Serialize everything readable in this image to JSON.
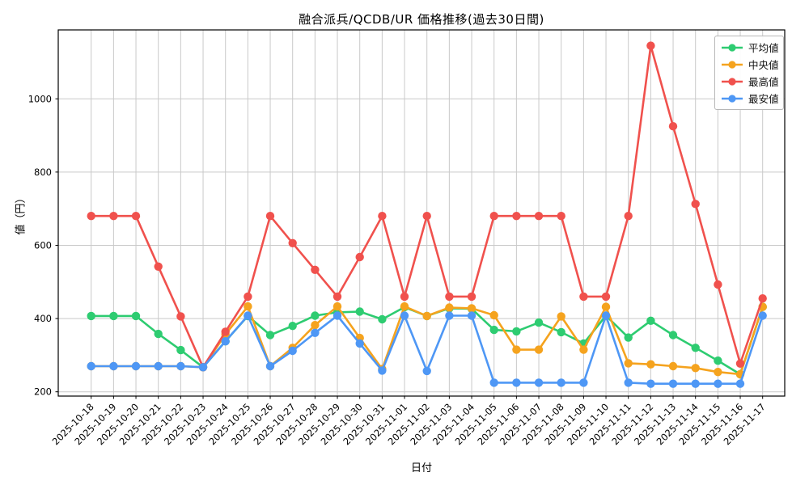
{
  "chart_data": {
    "type": "line",
    "title": "融合派兵/QCDB/UR 価格推移(過去30日間)",
    "xlabel": "日付",
    "ylabel": "値（円）",
    "grid": true,
    "legend_position": "top-right",
    "ylim": [
      190,
      1190
    ],
    "yticks": [
      200,
      400,
      600,
      800,
      1000
    ],
    "x": [
      "2025-10-18",
      "2025-10-19",
      "2025-10-20",
      "2025-10-21",
      "2025-10-22",
      "2025-10-23",
      "2025-10-24",
      "2025-10-25",
      "2025-10-26",
      "2025-10-27",
      "2025-10-28",
      "2025-10-29",
      "2025-10-30",
      "2025-10-31",
      "2025-11-01",
      "2025-11-02",
      "2025-11-03",
      "2025-11-04",
      "2025-11-05",
      "2025-11-06",
      "2025-11-07",
      "2025-11-08",
      "2025-11-09",
      "2025-11-10",
      "2025-11-11",
      "2025-11-12",
      "2025-11-13",
      "2025-11-14",
      "2025-11-15",
      "2025-11-16",
      "2025-11-17"
    ],
    "series": [
      {
        "name": "平均値",
        "color": "#2ecc71",
        "values": [
          407,
          407,
          407,
          358,
          314,
          267,
          338,
          407,
          355,
          380,
          408,
          417,
          419,
          398,
          431,
          407,
          428,
          427,
          369,
          365,
          389,
          363,
          332,
          408,
          348,
          394,
          355,
          320,
          285,
          248,
          432
        ]
      },
      {
        "name": "中央値",
        "color": "#f5a31e",
        "values": [
          270,
          270,
          270,
          270,
          270,
          267,
          357,
          433,
          270,
          320,
          382,
          433,
          347,
          262,
          433,
          407,
          430,
          428,
          409,
          315,
          315,
          406,
          315,
          432,
          278,
          275,
          270,
          265,
          254,
          248,
          432
        ]
      },
      {
        "name": "最高値",
        "color": "#f0514d",
        "values": [
          680,
          680,
          680,
          542,
          406,
          267,
          364,
          460,
          680,
          606,
          533,
          460,
          568,
          680,
          460,
          680,
          460,
          460,
          680,
          680,
          680,
          680,
          460,
          460,
          680,
          1145,
          925,
          713,
          493,
          277,
          455
        ]
      },
      {
        "name": "最安値",
        "color": "#4e97f5",
        "values": [
          270,
          270,
          270,
          270,
          270,
          267,
          338,
          408,
          270,
          312,
          361,
          408,
          332,
          258,
          408,
          257,
          408,
          408,
          225,
          225,
          225,
          225,
          225,
          408,
          225,
          222,
          222,
          222,
          222,
          222,
          408
        ]
      }
    ],
    "style": {
      "grid_color": "#c9c9c9",
      "spine_color": "#000000",
      "tick_label_color": "#000000",
      "background": "#ffffff"
    }
  }
}
